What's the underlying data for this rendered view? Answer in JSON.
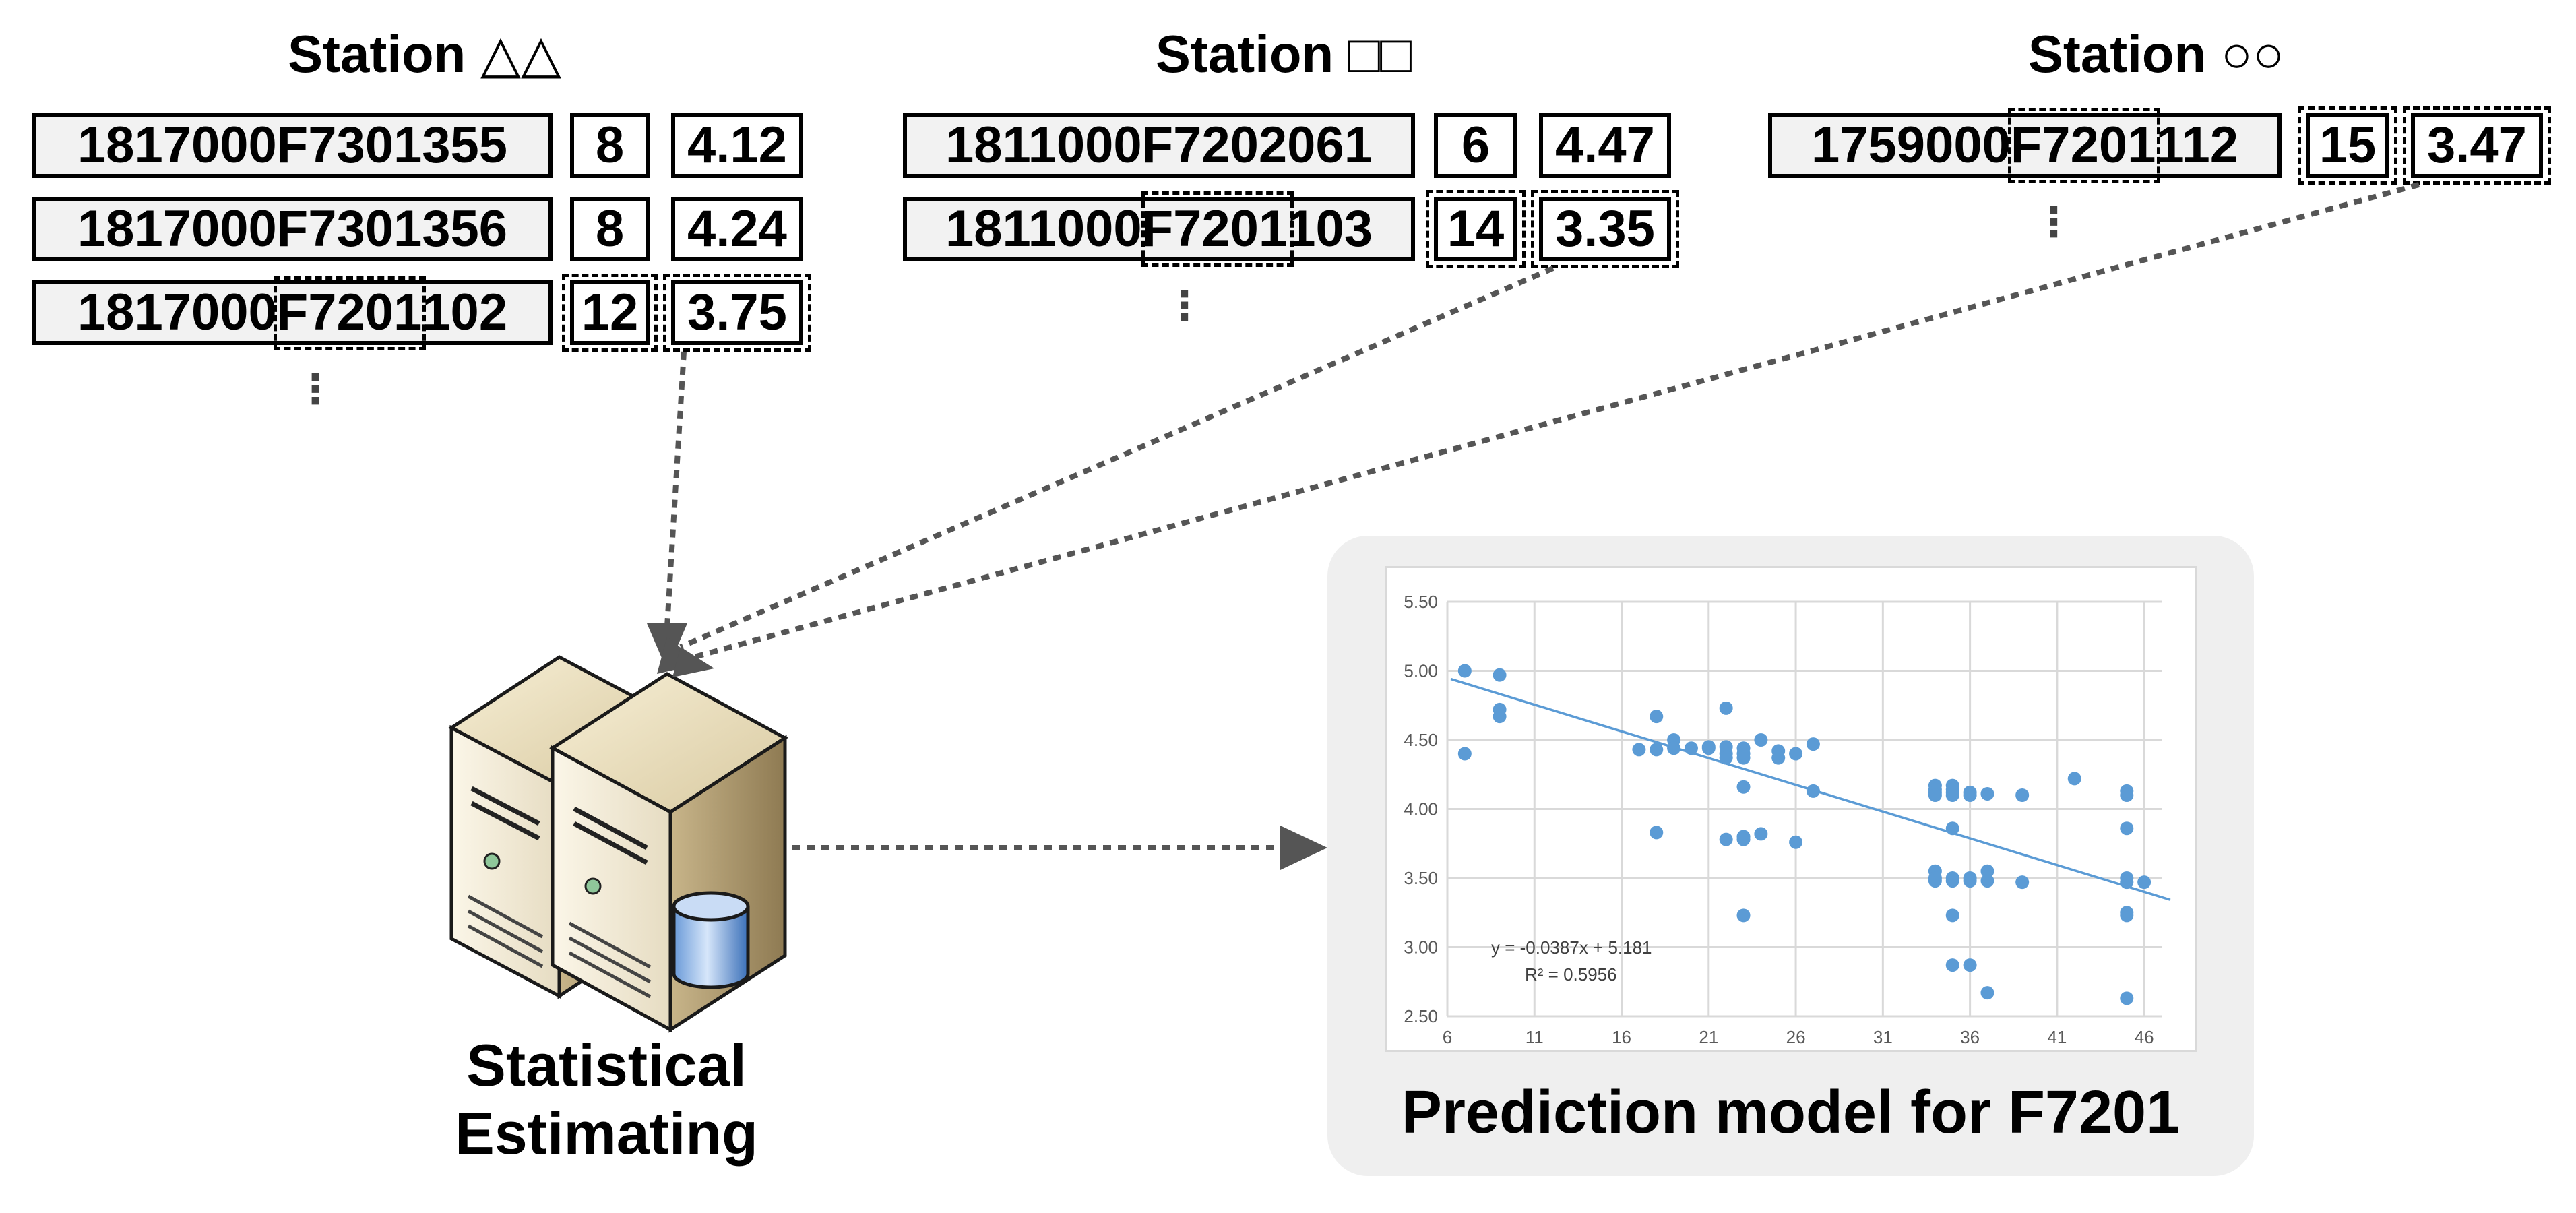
{
  "stations": [
    {
      "title": "Station △△",
      "rows": [
        {
          "code": "1817000F7301355",
          "count": "8",
          "value": "4.12"
        },
        {
          "code": "1817000F7301356",
          "count": "8",
          "value": "4.24"
        },
        {
          "code_pre": "1817000",
          "code_mid": "F7201",
          "code_post": "102",
          "count": "12",
          "value": "3.75"
        }
      ],
      "ellipsis": "⋮"
    },
    {
      "title": "Station □□",
      "rows": [
        {
          "code": "1811000F7202061",
          "count": "6",
          "value": "4.47"
        },
        {
          "code_pre": "1811000",
          "code_mid": "F7201",
          "code_post": "103",
          "count": "14",
          "value": "3.35"
        }
      ],
      "ellipsis": "⋮"
    },
    {
      "title": "Station ○○",
      "rows": [
        {
          "code_pre": "1759000",
          "code_mid": "F7201",
          "code_post": "112",
          "count": "15",
          "value": "3.47"
        }
      ],
      "ellipsis": "⋮"
    }
  ],
  "server": {
    "caption_line1": "Statistical",
    "caption_line2": "Estimating",
    "icon": "database-server-icon"
  },
  "model": {
    "caption": "Prediction model for F7201"
  },
  "chart_data": {
    "type": "scatter",
    "title": "",
    "xlabel": "",
    "ylabel": "",
    "xlim": [
      6,
      47
    ],
    "ylim": [
      2.5,
      5.5
    ],
    "x_ticks": [
      "6",
      "11",
      "16",
      "21",
      "26",
      "31",
      "36",
      "41",
      "46"
    ],
    "y_ticks": [
      "2.50",
      "3.00",
      "3.50",
      "4.00",
      "4.50",
      "5.00",
      "5.50"
    ],
    "grid": true,
    "trendline": {
      "slope": -0.0387,
      "intercept": 5.181,
      "style": "dotted"
    },
    "equation": "y = -0.0387x + 5.181",
    "r_squared": "R² = 0.5956",
    "points": [
      [
        7,
        5.0
      ],
      [
        7,
        4.4
      ],
      [
        9,
        4.97
      ],
      [
        9,
        4.72
      ],
      [
        9,
        4.67
      ],
      [
        17,
        4.43
      ],
      [
        18,
        4.43
      ],
      [
        18,
        4.67
      ],
      [
        18,
        3.83
      ],
      [
        19,
        4.5
      ],
      [
        19,
        4.44
      ],
      [
        20,
        4.44
      ],
      [
        21,
        4.45
      ],
      [
        21,
        4.44
      ],
      [
        22,
        4.73
      ],
      [
        22,
        4.45
      ],
      [
        22,
        4.4
      ],
      [
        22,
        4.37
      ],
      [
        22,
        3.78
      ],
      [
        23,
        4.44
      ],
      [
        23,
        4.4
      ],
      [
        23,
        4.37
      ],
      [
        23,
        4.16
      ],
      [
        23,
        3.8
      ],
      [
        23,
        3.78
      ],
      [
        23,
        3.23
      ],
      [
        24,
        4.5
      ],
      [
        24,
        3.82
      ],
      [
        25,
        4.42
      ],
      [
        25,
        4.37
      ],
      [
        26,
        4.4
      ],
      [
        26,
        3.76
      ],
      [
        27,
        4.47
      ],
      [
        27,
        4.13
      ],
      [
        34,
        4.17
      ],
      [
        34,
        4.14
      ],
      [
        34,
        4.12
      ],
      [
        34,
        4.1
      ],
      [
        34,
        3.55
      ],
      [
        34,
        3.5
      ],
      [
        34,
        3.48
      ],
      [
        35,
        4.17
      ],
      [
        35,
        4.14
      ],
      [
        35,
        4.12
      ],
      [
        35,
        4.1
      ],
      [
        35,
        3.86
      ],
      [
        35,
        3.5
      ],
      [
        35,
        3.48
      ],
      [
        35,
        3.23
      ],
      [
        35,
        2.87
      ],
      [
        36,
        4.12
      ],
      [
        36,
        4.1
      ],
      [
        36,
        3.5
      ],
      [
        36,
        3.48
      ],
      [
        36,
        2.87
      ],
      [
        37,
        4.11
      ],
      [
        37,
        3.55
      ],
      [
        37,
        3.48
      ],
      [
        37,
        2.67
      ],
      [
        39,
        4.1
      ],
      [
        39,
        3.47
      ],
      [
        42,
        4.22
      ],
      [
        45,
        4.13
      ],
      [
        45,
        4.1
      ],
      [
        45,
        3.86
      ],
      [
        45,
        3.5
      ],
      [
        45,
        3.47
      ],
      [
        45,
        3.25
      ],
      [
        45,
        3.23
      ],
      [
        45,
        2.63
      ],
      [
        46,
        3.47
      ]
    ],
    "point_color": "#5b9bd5",
    "trend_color": "#5b9bd5"
  }
}
